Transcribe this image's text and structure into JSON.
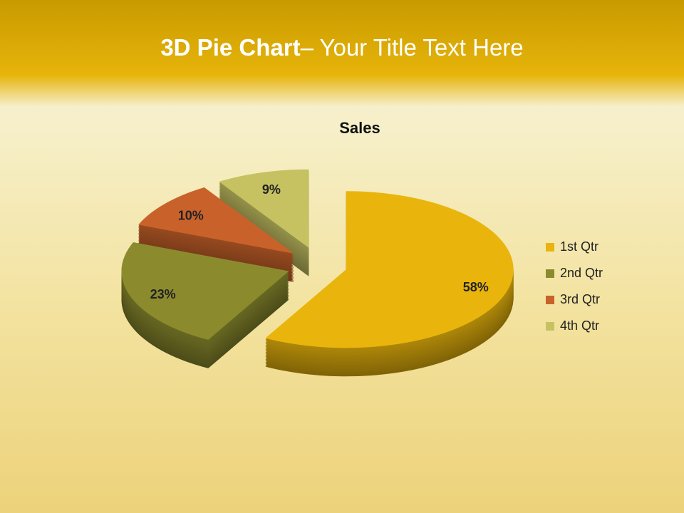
{
  "slide_title": {
    "bold": "3D Pie Chart",
    "rest": "– Your Title Text Here"
  },
  "chart_data": {
    "type": "pie",
    "title": "Sales",
    "categories": [
      "1st Qtr",
      "2nd Qtr",
      "3rd Qtr",
      "4th Qtr"
    ],
    "values": [
      58,
      23,
      10,
      9
    ],
    "value_labels": [
      "58%",
      "23%",
      "10%",
      "9%"
    ],
    "colors": [
      "#e9b50c",
      "#8b8b2e",
      "#c9622a",
      "#c6c262"
    ],
    "legend": "right"
  }
}
